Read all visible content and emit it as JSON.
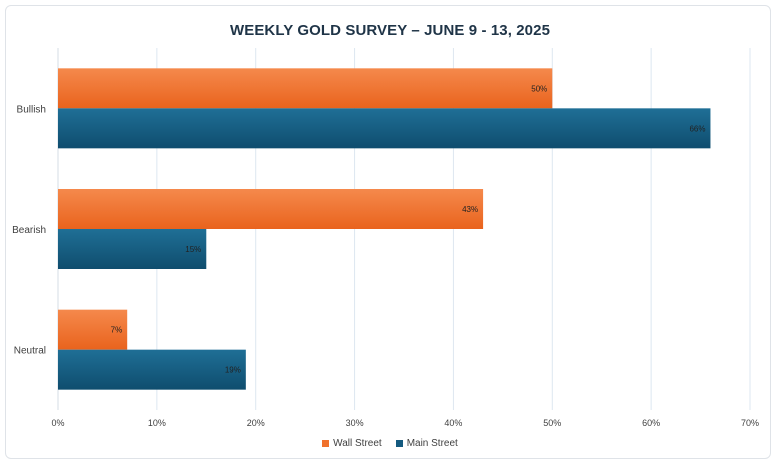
{
  "chart_data": {
    "type": "bar",
    "orientation": "horizontal",
    "title": "WEEKLY GOLD SURVEY – JUNE 9 - 13, 2025",
    "categories": [
      "Bullish",
      "Bearish",
      "Neutral"
    ],
    "series": [
      {
        "name": "Wall Street",
        "values": [
          50,
          43,
          7
        ],
        "labels": [
          "50%",
          "43%",
          "7%"
        ],
        "color": "#f0712c"
      },
      {
        "name": "Main Street",
        "values": [
          66,
          15,
          19
        ],
        "labels": [
          "66%",
          "15%",
          "19%"
        ],
        "color": "#145a7f"
      }
    ],
    "xlim": [
      0,
      70
    ],
    "xticks": [
      "0%",
      "10%",
      "20%",
      "30%",
      "40%",
      "50%",
      "60%",
      "70%"
    ],
    "grid": true,
    "legend_position": "bottom"
  }
}
